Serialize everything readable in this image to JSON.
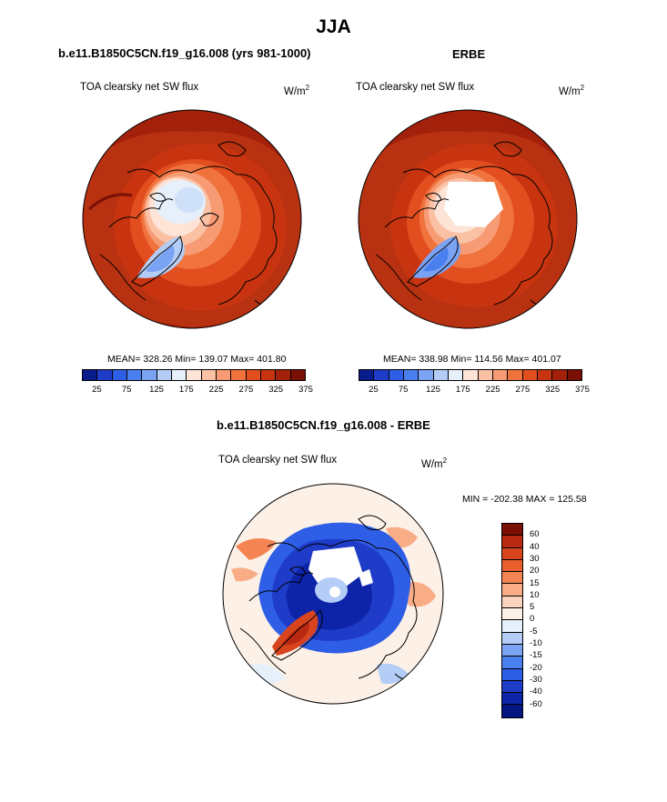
{
  "page": {
    "main_title": "JJA",
    "left_panel": {
      "title": "b.e11.B1850C5CN.f19_g16.008 (yrs 981-1000)",
      "var_label": "TOA clearsky net SW flux",
      "units": "W/m",
      "units_sup": "2",
      "stats": "MEAN= 328.26  Min= 139.07  Max= 401.80"
    },
    "right_panel": {
      "title": "ERBE",
      "var_label": "TOA clearsky net SW flux",
      "units": "W/m",
      "units_sup": "2",
      "stats": "MEAN= 338.98  Min= 114.56  Max= 401.07"
    },
    "diff_panel": {
      "title": "b.e11.B1850C5CN.f19_g16.008 - ERBE",
      "var_label": "TOA clearsky net SW flux",
      "units": "W/m",
      "units_sup": "2",
      "minmax": "MIN = -202.38 MAX = 125.58"
    }
  },
  "colorbar_abs": {
    "colors": [
      "#0a1c8c",
      "#1e3cc8",
      "#2f5ee6",
      "#4a7ff0",
      "#7aa3f4",
      "#b3cdf7",
      "#e6f0fb",
      "#fde4d6",
      "#fbc1a4",
      "#f79b74",
      "#f0733e",
      "#e34e1f",
      "#c8340f",
      "#a3200a",
      "#7a0f05"
    ],
    "ticks": [
      "25",
      "75",
      "125",
      "175",
      "225",
      "275",
      "325",
      "375"
    ]
  },
  "colorbar_diff": {
    "colors": [
      "#7a0f05",
      "#b82812",
      "#d8441d",
      "#ea5f2e",
      "#f48553",
      "#f8ad86",
      "#fbd3bd",
      "#fdf0e6",
      "#e6f0fb",
      "#b3cdf7",
      "#7aa3f4",
      "#4a7ff0",
      "#2f5ee6",
      "#1e3cc8",
      "#0d23a8",
      "#061681"
    ],
    "ticks": [
      "60",
      "40",
      "30",
      "20",
      "15",
      "10",
      "5",
      "0",
      "-5",
      "-10",
      "-15",
      "-20",
      "-30",
      "-40",
      "-60"
    ]
  },
  "colors": {
    "land_outline": "#000000",
    "high_flux": "#b83211",
    "low_flux": "#eaf2fc"
  }
}
